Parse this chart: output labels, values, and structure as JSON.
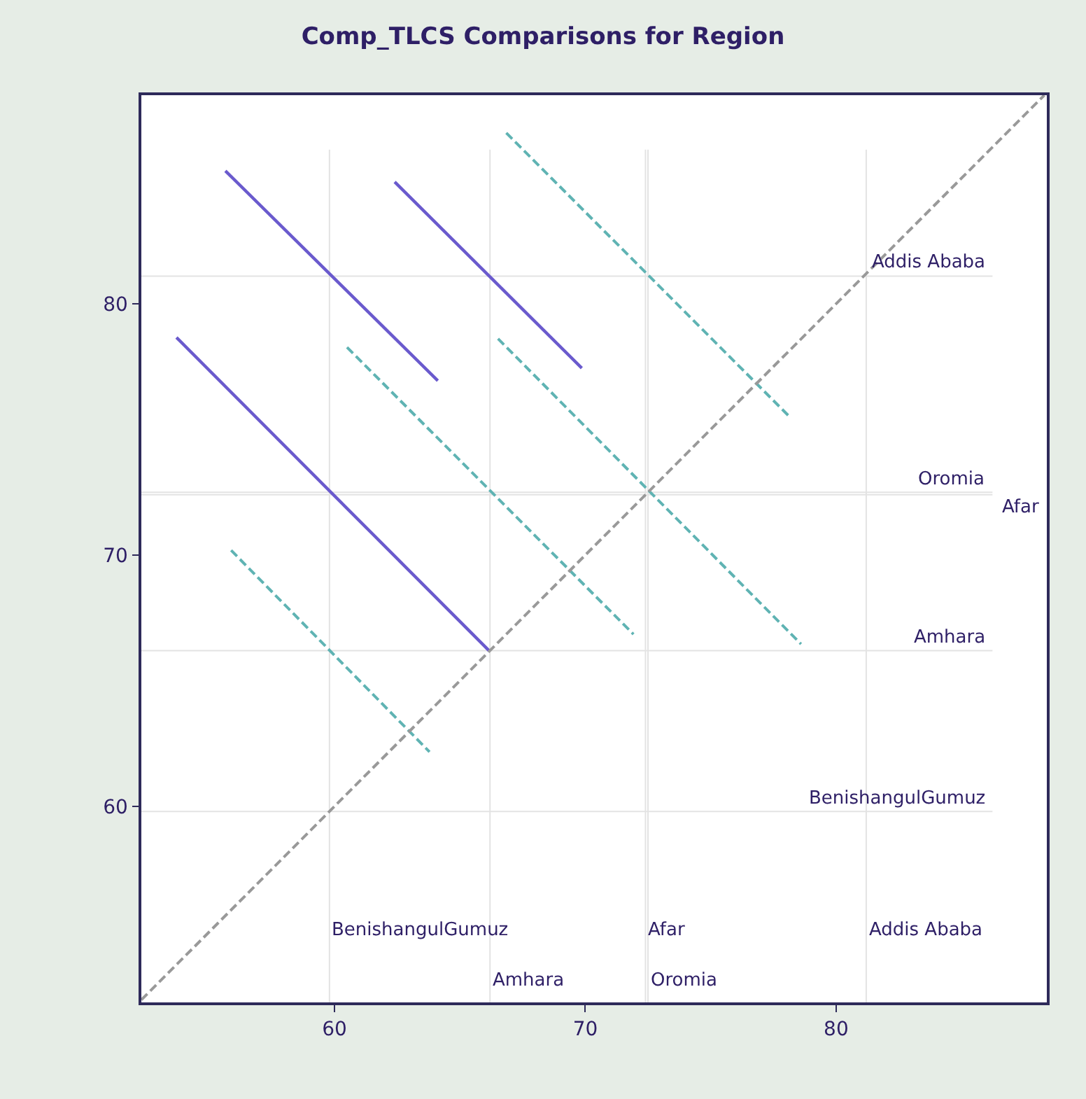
{
  "chart_data": {
    "type": "line",
    "title": "Comp_TLCS Comparisons for Region",
    "xlim": [
      52.3,
      88.4
    ],
    "ylim": [
      52.2,
      88.3
    ],
    "xticks": [
      60,
      70,
      80
    ],
    "yticks": [
      60,
      70,
      80
    ],
    "grid": false,
    "marker": "none",
    "series": [
      {
        "color": "#6a5acd",
        "line_style": "solid",
        "x": [
          55.65,
          64.12
        ],
        "values": [
          85.29,
          76.94
        ]
      },
      {
        "color": "#6a5acd",
        "line_style": "solid",
        "x": [
          62.4,
          69.86
        ],
        "values": [
          84.85,
          77.44
        ]
      },
      {
        "color": "#5fb3b3",
        "line_style": "dashed",
        "x": [
          66.85,
          78.16
        ],
        "values": [
          86.8,
          75.49
        ]
      },
      {
        "color": "#6a5acd",
        "line_style": "solid",
        "x": [
          53.7,
          66.18
        ],
        "values": [
          78.66,
          66.18
        ]
      },
      {
        "color": "#5fb3b3",
        "line_style": "dashed",
        "x": [
          60.5,
          71.92
        ],
        "values": [
          78.27,
          66.85
        ]
      },
      {
        "color": "#5fb3b3",
        "line_style": "dashed",
        "x": [
          66.52,
          78.6
        ],
        "values": [
          78.61,
          66.46
        ]
      },
      {
        "color": "#5fb3b3",
        "line_style": "dashed",
        "x": [
          55.88,
          63.79
        ],
        "values": [
          70.19,
          62.17
        ]
      },
      {
        "color": "#999999",
        "line_style": "dashed",
        "x": [
          52.3,
          88.3
        ],
        "values": [
          52.3,
          88.3
        ]
      }
    ],
    "ref_lines": [
      {
        "axis": "x",
        "value": 59.8,
        "label": "BenishangulGumuz",
        "color": "#e3e3e3"
      },
      {
        "axis": "x",
        "value": 66.2,
        "label": "Amhara",
        "color": "#e3e3e3"
      },
      {
        "axis": "x",
        "value": 72.4,
        "label": "Afar",
        "color": "#e3e3e3"
      },
      {
        "axis": "x",
        "value": 72.5,
        "label": "Oromia",
        "color": "#e3e3e3"
      },
      {
        "axis": "x",
        "value": 81.2,
        "label": "Addis Ababa",
        "color": "#e3e3e3"
      },
      {
        "axis": "y",
        "value": 81.1,
        "label": "Addis Ababa",
        "color": "#e3e3e3"
      },
      {
        "axis": "y",
        "value": 72.5,
        "label": "Oromia",
        "color": "#e3e3e3"
      },
      {
        "axis": "y",
        "value": 72.4,
        "label": "Afar",
        "color": "#e3e3e3"
      },
      {
        "axis": "y",
        "value": 66.2,
        "label": "Amhara",
        "color": "#e3e3e3"
      },
      {
        "axis": "y",
        "value": 59.8,
        "label": "BenishangulGumuz",
        "color": "#e3e3e3"
      }
    ]
  }
}
